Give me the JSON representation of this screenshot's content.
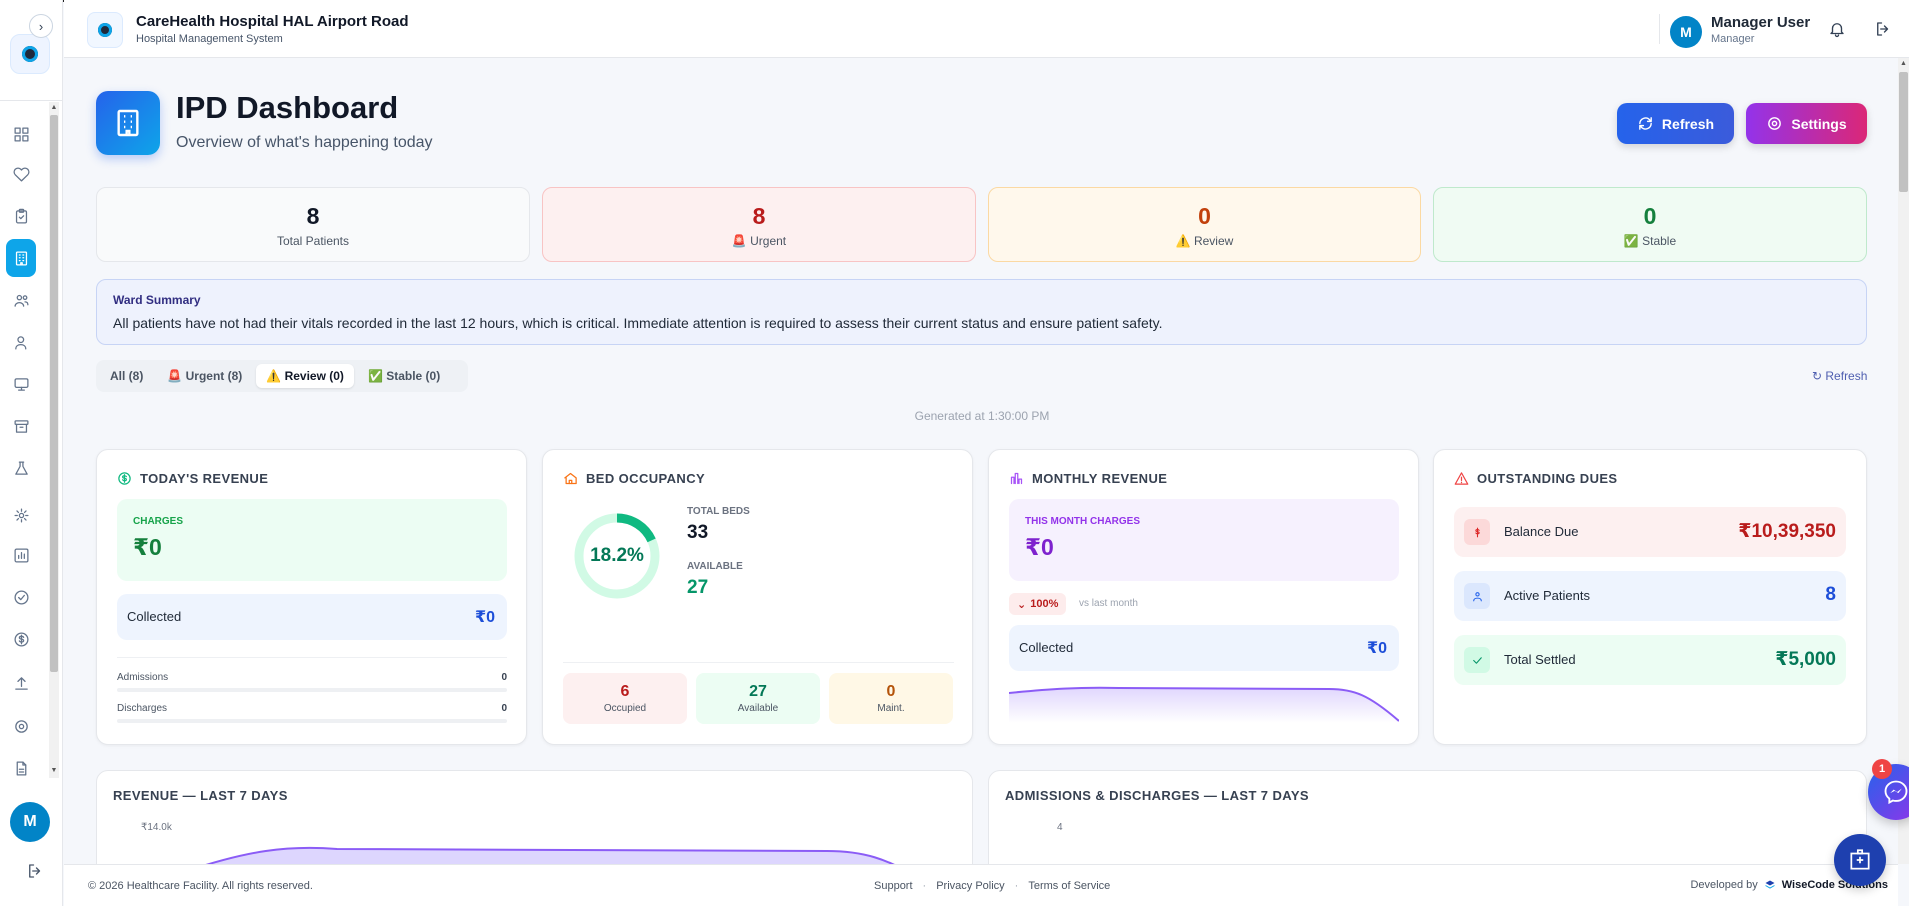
{
  "header": {
    "hospital_name": "CareHealth Hospital HAL Airport Road",
    "system_name": "Hospital Management System",
    "user_initial": "M",
    "user_name": "Manager User",
    "user_role": "Manager"
  },
  "sidebar": {
    "toggle_icon": "chevron-right-icon",
    "avatar_initial": "M",
    "items": [
      {
        "icon": "grid-icon"
      },
      {
        "icon": "heart-icon"
      },
      {
        "icon": "clipboard-icon"
      },
      {
        "icon": "building-icon",
        "active": true
      },
      {
        "icon": "users-icon"
      },
      {
        "icon": "user-icon"
      },
      {
        "icon": "monitor-icon"
      },
      {
        "icon": "archive-icon"
      },
      {
        "icon": "flask-icon"
      },
      {
        "icon": "cog-icon"
      },
      {
        "icon": "bar-chart-icon"
      },
      {
        "icon": "check-circle-icon"
      },
      {
        "icon": "dollar-circle-icon"
      },
      {
        "icon": "upload-icon"
      },
      {
        "icon": "gear-icon"
      },
      {
        "icon": "file-icon"
      }
    ]
  },
  "hero": {
    "title": "IPD Dashboard",
    "subtitle": "Overview of what's happening today",
    "refresh_label": "Refresh",
    "settings_label": "Settings"
  },
  "stats": {
    "total": {
      "value": "8",
      "label": "Total Patients"
    },
    "urgent": {
      "value": "8",
      "label": "🚨 Urgent"
    },
    "review": {
      "value": "0",
      "label": "⚠️ Review"
    },
    "stable": {
      "value": "0",
      "label": "✅ Stable"
    }
  },
  "ward_summary": {
    "title": "Ward Summary",
    "text": "All patients have not had their vitals recorded in the last 12 hours, which is critical. Immediate attention is required to assess their current status and ensure patient safety."
  },
  "filters": {
    "tabs": [
      "All (8)",
      "🚨 Urgent (8)",
      "⚠️ Review (0)",
      "✅ Stable (0)"
    ],
    "active_index": 2,
    "refresh_link": "↻ Refresh"
  },
  "generated_at": "Generated at 1:30:00 PM",
  "todays_revenue": {
    "title": "TODAY'S REVENUE",
    "charges_label": "CHARGES",
    "charges_value": "₹0",
    "collected_label": "Collected",
    "collected_value": "₹0",
    "admissions_label": "Admissions",
    "admissions_value": "0",
    "discharges_label": "Discharges",
    "discharges_value": "0"
  },
  "bed_occupancy": {
    "title": "BED OCCUPANCY",
    "percent_label": "18.2%",
    "percent_value": 18.2,
    "total_beds_label": "TOTAL BEDS",
    "total_beds_value": "33",
    "available_label": "AVAILABLE",
    "available_value": "27",
    "tiles": [
      {
        "value": "6",
        "label": "Occupied"
      },
      {
        "value": "27",
        "label": "Available"
      },
      {
        "value": "0",
        "label": "Maint."
      }
    ]
  },
  "monthly_revenue": {
    "title": "MONTHLY REVENUE",
    "charges_label": "THIS MONTH CHARGES",
    "charges_value": "₹0",
    "change": "100%",
    "vs_label": "vs last month",
    "collected_label": "Collected",
    "collected_value": "₹0"
  },
  "outstanding_dues": {
    "title": "OUTSTANDING DUES",
    "balance_label": "Balance Due",
    "balance_value": "₹10,39,350",
    "active_label": "Active Patients",
    "active_value": "8",
    "settled_label": "Total Settled",
    "settled_value": "₹5,000"
  },
  "revenue_chart": {
    "title": "REVENUE — LAST 7 DAYS",
    "y_tick": "₹14.0k"
  },
  "admissions_chart": {
    "title": "ADMISSIONS & DISCHARGES — LAST 7 DAYS",
    "y_tick": "4"
  },
  "footer": {
    "copyright": "© 2026 Healthcare Facility. All rights reserved.",
    "support": "Support",
    "privacy": "Privacy Policy",
    "terms": "Terms of Service",
    "developed_by": "Developed by",
    "company": "WiseCode Solutions"
  },
  "chat_badge": "1",
  "colors": {
    "accent": "#0ea5e9",
    "refresh_btn": "#2563eb",
    "settings_btn": "#9333ea",
    "urgent": "#b91c1c",
    "stable": "#15803d"
  }
}
